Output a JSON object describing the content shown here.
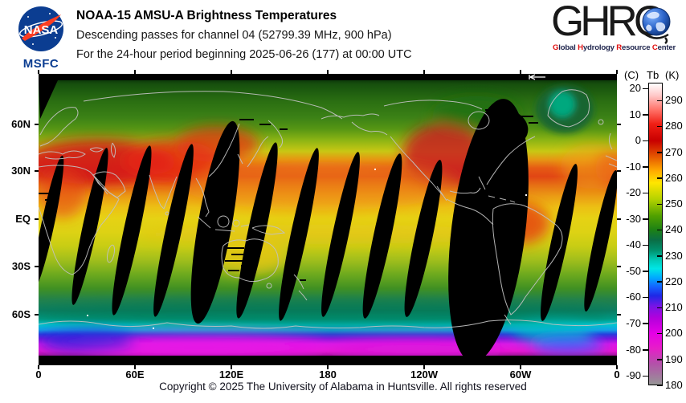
{
  "header": {
    "nasa": {
      "logo_text": "NASA",
      "caption": "MSFC"
    },
    "title": "NOAA-15 AMSU-A Brightness Temperatures",
    "subtitle_line1": "Descending passes for channel 04 (52799.39 MHz, 900 hPa)",
    "subtitle_line2": "For the 24-hour period beginning 2025-06-26 (177) at 00:00 UTC",
    "ghrc": {
      "logo_text": "GHRC",
      "tagline": [
        {
          "initial": "G",
          "rest": "lobal"
        },
        {
          "initial": "H",
          "rest": "ydrology"
        },
        {
          "initial": "R",
          "rest": "esource"
        },
        {
          "initial": "C",
          "rest": "enter"
        }
      ],
      "accent_red": "#e01010"
    }
  },
  "chart_data": {
    "type": "heatmap",
    "title": "NOAA-15 AMSU-A Brightness Temperatures",
    "subtitle": "Descending passes for channel 04 (52799.39 MHz, 900 hPa), 24-hour period beginning 2025-06-26 (177) at 00:00 UTC",
    "projection": "equirectangular world map, longitude 0E eastward through 180 back to 0, latitude 90N to 90S",
    "x_ticks": [
      "0",
      "60E",
      "120E",
      "180",
      "120W",
      "60W",
      "0"
    ],
    "y_ticks": [
      "60N",
      "30N",
      "EQ",
      "30S",
      "60S"
    ],
    "grid": false,
    "colorbar": {
      "unit_left": "(C)",
      "quantity": "Tb",
      "unit_right": "(K)",
      "celsius_ticks": [
        20,
        10,
        0,
        -10,
        -20,
        -30,
        -40,
        -50,
        -60,
        -70,
        -80,
        -90
      ],
      "kelvin_ticks": [
        290,
        280,
        270,
        260,
        250,
        240,
        230,
        220,
        210,
        200,
        190,
        180
      ],
      "range_kelvin": [
        180,
        297
      ],
      "gradient_stops_top_to_bottom": [
        "#ffffff",
        "#ffc8c8",
        "#ff6e64",
        "#f01e14",
        "#c80000",
        "#e65a00",
        "#ffaa00",
        "#ffe600",
        "#b4d200",
        "#50a000",
        "#1e8214",
        "#0a6e46",
        "#00916e",
        "#00c8b4",
        "#00e6e6",
        "#00aaff",
        "#1464ff",
        "#1e28e6",
        "#7814e6",
        "#b400dc",
        "#e600e6",
        "#e61ec8",
        "#b450aa",
        "#969696"
      ]
    },
    "map_features": {
      "field_description": "Warm brightness temperatures (red, ~270-290K) over subtropical land (Sahara, Arabia, India, East Asia, western North America, Amazon); yellow-orange (~255-265K) tropics and mid-latitude oceans; green (~240-250K) high northern latitudes and southern ocean; teal-cyan-blue-magenta (~180-230K) over Antarctica.",
      "data_gap_description": "Black lens-shaped diagonal gaps between descending orbital swaths (about 13, tilted top-right), including one very large gap covering Central/South America; light-gray coastlines overplotted.",
      "swath_direction_arrow": "small white left-pointing arrow on the black band at the top of the map near 110W",
      "no_data_bands": "solid black strips along the extreme north and south edges of the map"
    }
  },
  "footer": {
    "copyright": "Copyright © 2025 The University of Alabama in Huntsville.  All rights reserved"
  }
}
